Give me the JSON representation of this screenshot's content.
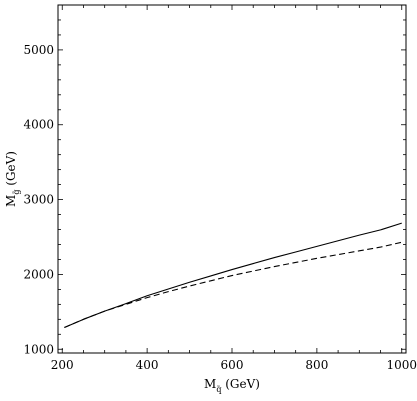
{
  "chart_data": {
    "type": "line",
    "title": "",
    "xlabel": {
      "main": "M",
      "sub": "q̃",
      "unit": " (GeV)"
    },
    "ylabel": {
      "main": "M",
      "sub": "g̃",
      "unit": " (GeV)"
    },
    "xlim": [
      190,
      1010
    ],
    "ylim": [
      950,
      5600
    ],
    "xticks": [
      200,
      400,
      600,
      800,
      1000
    ],
    "yticks": [
      1000,
      2000,
      3000,
      4000,
      5000
    ],
    "grid": false,
    "legend": "none",
    "series": [
      {
        "style": "solid",
        "color": "#000000",
        "x": [
          205,
          250,
          300,
          350,
          400,
          450,
          500,
          550,
          600,
          650,
          700,
          750,
          800,
          850,
          900,
          950,
          1000
        ],
        "y": [
          1290,
          1400,
          1510,
          1610,
          1715,
          1805,
          1895,
          1980,
          2065,
          2145,
          2225,
          2300,
          2375,
          2450,
          2525,
          2595,
          2685
        ]
      },
      {
        "style": "dashed",
        "color": "#000000",
        "x": [
          205,
          250,
          300,
          350,
          400,
          450,
          500,
          550,
          600,
          650,
          700,
          750,
          800,
          850,
          900,
          950,
          1000
        ],
        "y": [
          1290,
          1400,
          1510,
          1600,
          1690,
          1770,
          1845,
          1915,
          1985,
          2045,
          2105,
          2160,
          2215,
          2265,
          2315,
          2365,
          2430
        ]
      }
    ]
  }
}
